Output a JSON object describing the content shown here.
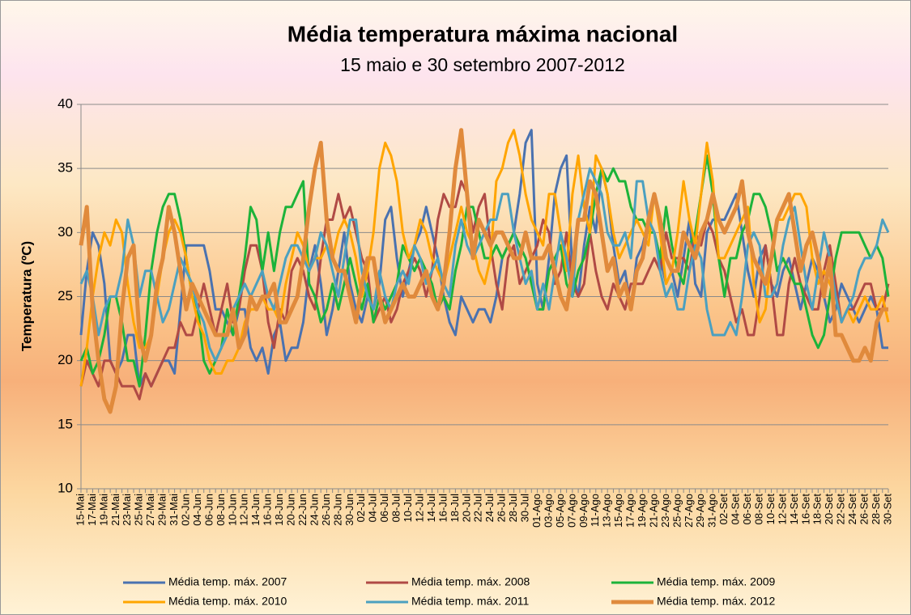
{
  "chart_data": {
    "type": "line",
    "title": "Média temperatura máxima nacional",
    "subtitle": "15 maio e 30 setembro 2007-2012",
    "y_label": "Temperatura (ºC)",
    "legend": "bottom",
    "grid": true,
    "ylim": [
      10,
      40
    ],
    "yticks": [
      10,
      15,
      20,
      25,
      30,
      35,
      40
    ],
    "categories": [
      "15-Mai",
      null,
      "17-Mai",
      null,
      "19-Mai",
      null,
      "21-Mai",
      null,
      "23-Mai",
      null,
      "25-Mai",
      null,
      "27-Mai",
      null,
      "29-Mai",
      null,
      "31-Mai",
      null,
      "02-Jun",
      null,
      "04-Jun",
      null,
      "06-Jun",
      null,
      "08-Jun",
      null,
      "10-Jun",
      null,
      "12-Jun",
      null,
      "14-Jun",
      null,
      "16-Jun",
      null,
      "18-Jun",
      null,
      "20-Jun",
      null,
      "22-Jun",
      null,
      "24-Jun",
      null,
      "26-Jun",
      null,
      "28-Jun",
      null,
      "30-Jun",
      null,
      "02-Jul",
      null,
      "04-Jul",
      null,
      "06-Jul",
      null,
      "08-Jul",
      null,
      "10-Jul",
      null,
      "12-Jul",
      null,
      "14-Jul",
      null,
      "16-Jul",
      null,
      "18-Jul",
      null,
      "20-Jul",
      null,
      "22-Jul",
      null,
      "24-Jul",
      null,
      "26-Jul",
      null,
      "28-Jul",
      null,
      "30-Jul",
      null,
      "01-Ago",
      null,
      "03-Ago",
      null,
      "05-Ago",
      null,
      "07-Ago",
      null,
      "09-Ago",
      null,
      "11-Ago",
      null,
      "13-Ago",
      null,
      "15-Ago",
      null,
      "17-Ago",
      null,
      "19-Ago",
      null,
      "21-Ago",
      null,
      "23-Ago",
      null,
      "25-Ago",
      null,
      "27-Ago",
      null,
      "29-Ago",
      null,
      "31-Ago",
      null,
      "02-Set",
      null,
      "04-Set",
      null,
      "06-Set",
      null,
      "08-Set",
      null,
      "10-Set",
      null,
      "12-Set",
      null,
      "14-Set",
      null,
      "16-Set",
      null,
      "18-Set",
      null,
      "20-Set",
      null,
      "22-Set",
      null,
      "24-Set",
      null,
      "26-Set",
      null,
      "28-Set",
      null,
      "30-Set"
    ],
    "series": [
      {
        "name": "Média temp. máx. 2007",
        "color": "#4a72b0",
        "width": 3,
        "values": [
          22,
          27,
          30,
          29,
          26,
          20,
          19,
          20,
          22,
          22,
          18,
          19,
          18,
          19,
          20,
          20,
          19,
          24,
          29,
          29,
          29,
          29,
          27,
          24,
          24,
          23,
          22,
          24,
          24,
          21,
          20,
          21,
          19,
          22,
          23,
          20,
          21,
          21,
          23,
          27,
          29,
          26,
          22,
          24,
          27,
          30,
          26,
          24,
          23,
          25,
          24,
          26,
          31,
          32,
          28,
          25,
          27,
          29,
          30,
          32,
          30,
          28,
          25,
          23,
          22,
          25,
          24,
          23,
          24,
          24,
          23,
          25,
          28,
          29,
          30,
          33,
          37,
          38,
          26,
          24,
          28,
          33,
          35,
          36,
          27,
          25,
          29,
          32,
          30,
          35,
          33,
          29,
          26,
          27,
          24,
          28,
          29,
          31,
          30,
          28,
          26,
          27,
          25,
          28,
          31,
          26,
          25,
          30,
          31,
          31,
          31,
          32,
          33,
          30,
          27,
          25,
          28,
          29,
          26,
          25,
          27,
          28,
          26,
          24,
          26,
          28,
          27,
          25,
          23,
          24,
          26,
          25,
          24,
          23,
          24,
          25,
          24,
          21,
          21
        ]
      },
      {
        "name": "Média temp. máx. 2008",
        "color": "#b04a45",
        "width": 3,
        "values": [
          18,
          20,
          19,
          18,
          20,
          20,
          19,
          18,
          18,
          18,
          17,
          19,
          18,
          19,
          20,
          21,
          21,
          23,
          22,
          22,
          24,
          26,
          24,
          22,
          24,
          26,
          23,
          24,
          27,
          29,
          29,
          27,
          23,
          21,
          24,
          23,
          27,
          28,
          27,
          25,
          24,
          28,
          31,
          31,
          33,
          31,
          32,
          30,
          28,
          27,
          23,
          24,
          25,
          23,
          24,
          26,
          27,
          28,
          27,
          25,
          27,
          31,
          33,
          32,
          32,
          34,
          33,
          30,
          32,
          33,
          29,
          26,
          24,
          28,
          29,
          26,
          27,
          28,
          29,
          31,
          30,
          26,
          27,
          30,
          26,
          25,
          26,
          30,
          27,
          25,
          24,
          26,
          25,
          24,
          26,
          26,
          26,
          27,
          28,
          27,
          30,
          28,
          28,
          28,
          27,
          30,
          29,
          31,
          30,
          28,
          27,
          25,
          23,
          24,
          22,
          22,
          25,
          29,
          26,
          22,
          22,
          26,
          28,
          26,
          25,
          24,
          24,
          27,
          29,
          26,
          23,
          24,
          24,
          25,
          26,
          26,
          24,
          24,
          26
        ]
      },
      {
        "name": "Média temp. máx. 2009",
        "color": "#1cb33a",
        "width": 3,
        "values": [
          20,
          21,
          19,
          20,
          22,
          25,
          25,
          23,
          20,
          20,
          18,
          22,
          27,
          30,
          32,
          33,
          33,
          31,
          28,
          25,
          24,
          20,
          19,
          20,
          21,
          24,
          22,
          25,
          28,
          32,
          31,
          27,
          30,
          27,
          30,
          32,
          32,
          33,
          34,
          26,
          25,
          23,
          24,
          26,
          24,
          26,
          28,
          26,
          24,
          26,
          23,
          25,
          24,
          25,
          26,
          29,
          28,
          27,
          28,
          27,
          26,
          24,
          25,
          24,
          27,
          29,
          32,
          32,
          30,
          28,
          28,
          29,
          28,
          29,
          30,
          29,
          28,
          26,
          24,
          24,
          27,
          28,
          29,
          26,
          25,
          27,
          28,
          30,
          33,
          35,
          34,
          35,
          34,
          34,
          32,
          31,
          31,
          30,
          30,
          28,
          32,
          29,
          27,
          26,
          29,
          30,
          33,
          36,
          33,
          28,
          25,
          28,
          28,
          30,
          31,
          33,
          33,
          32,
          30,
          27,
          28,
          27,
          26,
          26,
          24,
          22,
          21,
          22,
          25,
          28,
          30,
          30,
          30,
          30,
          29,
          28,
          29,
          28,
          25
        ]
      },
      {
        "name": "Média temp. máx. 2010",
        "color": "#ffa500",
        "width": 3,
        "values": [
          18,
          21,
          25,
          28,
          30,
          29,
          31,
          30,
          26,
          23,
          21,
          21,
          22,
          25,
          28,
          30,
          31,
          30,
          28,
          25,
          23,
          22,
          20,
          19,
          19,
          20,
          20,
          21,
          23,
          24,
          24,
          25,
          24,
          24,
          23,
          26,
          28,
          30,
          29,
          27,
          28,
          28,
          29,
          28,
          30,
          31,
          30,
          28,
          25,
          27,
          30,
          35,
          37,
          36,
          34,
          30,
          28,
          29,
          31,
          30,
          28,
          27,
          26,
          28,
          30,
          32,
          30,
          29,
          27,
          26,
          28,
          34,
          35,
          37,
          38,
          36,
          33,
          31,
          30,
          29,
          33,
          33,
          30,
          27,
          33,
          36,
          32,
          30,
          36,
          35,
          33,
          30,
          28,
          29,
          30,
          31,
          30,
          29,
          33,
          30,
          26,
          27,
          30,
          34,
          31,
          29,
          33,
          37,
          34,
          28,
          28,
          29,
          30,
          31,
          32,
          26,
          23,
          24,
          28,
          31,
          31,
          32,
          33,
          33,
          32,
          28,
          26,
          27,
          26,
          25,
          23,
          24,
          23,
          24,
          25,
          24,
          24,
          25,
          23
        ]
      },
      {
        "name": "Média temp. máx. 2011",
        "color": "#4ba0c0",
        "width": 3,
        "values": [
          26,
          27,
          25,
          22,
          24,
          25,
          25,
          27,
          31,
          29,
          25,
          27,
          27,
          25,
          23,
          24,
          26,
          28,
          27,
          26,
          24,
          23,
          21,
          20,
          21,
          22,
          24,
          25,
          26,
          25,
          26,
          27,
          25,
          24,
          26,
          28,
          29,
          29,
          28,
          27,
          28,
          30,
          29,
          27,
          25,
          28,
          31,
          31,
          27,
          25,
          24,
          27,
          25,
          24,
          26,
          27,
          26,
          29,
          28,
          26,
          27,
          28,
          26,
          25,
          29,
          31,
          29,
          28,
          29,
          30,
          31,
          31,
          33,
          33,
          30,
          28,
          26,
          27,
          24,
          26,
          24,
          27,
          30,
          28,
          25,
          31,
          33,
          35,
          34,
          33,
          30,
          29,
          29,
          30,
          28,
          34,
          34,
          31,
          30,
          27,
          25,
          26,
          24,
          24,
          27,
          29,
          28,
          24,
          22,
          22,
          22,
          23,
          22,
          25,
          29,
          30,
          29,
          25,
          25,
          26,
          29,
          31,
          32,
          29,
          26,
          24,
          27,
          30,
          28,
          25,
          23,
          24,
          25,
          27,
          28,
          28,
          29,
          31,
          30
        ]
      },
      {
        "name": "Média temp. máx. 2012",
        "color": "#e08a3c",
        "width": 5,
        "values": [
          29,
          32,
          24,
          20,
          17,
          16,
          18,
          24,
          28,
          29,
          22,
          20,
          22,
          26,
          28,
          32,
          30,
          27,
          24,
          26,
          25,
          24,
          23,
          22,
          22,
          22,
          24,
          21,
          22,
          25,
          24,
          25,
          25,
          26,
          23,
          23,
          24,
          25,
          28,
          32,
          35,
          37,
          31,
          28,
          27,
          27,
          25,
          23,
          26,
          28,
          28,
          25,
          23,
          24,
          25,
          26,
          25,
          25,
          26,
          27,
          25,
          24,
          26,
          30,
          35,
          38,
          33,
          28,
          31,
          30,
          29,
          30,
          30,
          29,
          28,
          28,
          30,
          28,
          28,
          28,
          29,
          27,
          25,
          24,
          27,
          31,
          31,
          34,
          33,
          30,
          27,
          28,
          25,
          26,
          24,
          27,
          28,
          31,
          33,
          31,
          28,
          27,
          27,
          30,
          29,
          28,
          30,
          31,
          33,
          31,
          30,
          31,
          32,
          34,
          30,
          28,
          27,
          26,
          28,
          31,
          32,
          33,
          30,
          27,
          29,
          30,
          28,
          25,
          28,
          22,
          22,
          21,
          20,
          20,
          21,
          20,
          23,
          24,
          24
        ]
      }
    ]
  }
}
